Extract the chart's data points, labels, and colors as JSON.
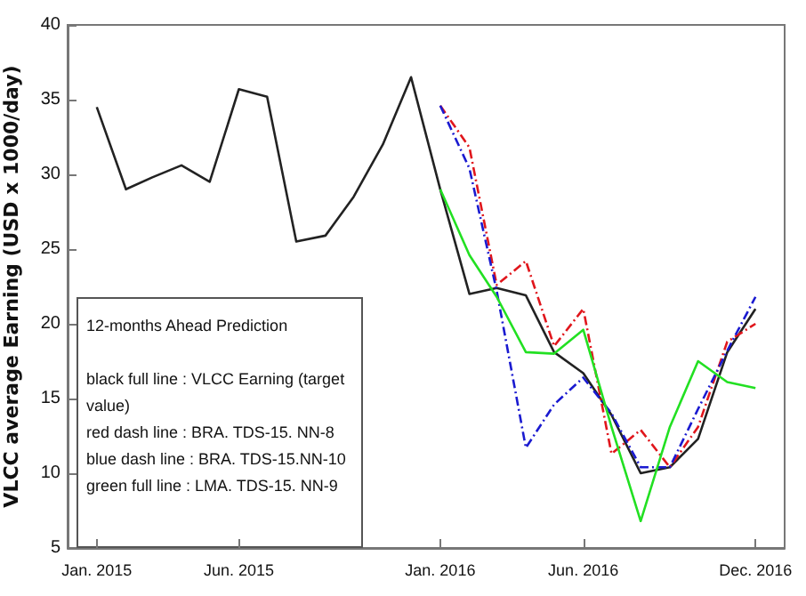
{
  "chart_data": {
    "type": "line",
    "ylabel": "VLCC average Earning (USD x 1000/day)",
    "xlim": [
      "2014-12",
      "2017-01"
    ],
    "ylim": [
      5,
      40
    ],
    "yticks": [
      5,
      10,
      15,
      20,
      25,
      30,
      35,
      40
    ],
    "xticks": [
      {
        "value": "2015-01",
        "label": "Jan. 2015"
      },
      {
        "value": "2015-06",
        "label": "Jun. 2015"
      },
      {
        "value": "2016-01",
        "label": "Jan. 2016"
      },
      {
        "value": "2016-06",
        "label": "Jun. 2016"
      },
      {
        "value": "2016-12",
        "label": "Dec. 2016"
      }
    ],
    "grid": false,
    "marker": "none",
    "series": [
      {
        "color": "#222222",
        "line_style": "solid",
        "x": [
          "2015-01",
          "2015-02",
          "2015-03",
          "2015-04",
          "2015-05",
          "2015-06",
          "2015-07",
          "2015-08",
          "2015-09",
          "2015-10",
          "2015-11",
          "2015-12",
          "2016-01",
          "2016-02",
          "2016-03",
          "2016-04",
          "2016-05",
          "2016-06",
          "2016-07",
          "2016-08",
          "2016-09",
          "2016-10",
          "2016-11",
          "2016-12"
        ],
        "values": [
          34.5,
          29.0,
          29.8,
          30.6,
          29.5,
          35.7,
          35.2,
          25.5,
          25.9,
          28.5,
          32.0,
          36.5,
          29.0,
          22.0,
          22.4,
          21.9,
          18.1,
          16.7,
          13.9,
          10.0,
          10.4,
          12.3,
          18.1,
          21.0
        ]
      },
      {
        "color": "#e0161c",
        "line_style": "dashed",
        "x": [
          "2016-01",
          "2016-02",
          "2016-03",
          "2016-04",
          "2016-05",
          "2016-06",
          "2016-07",
          "2016-08",
          "2016-09",
          "2016-10",
          "2016-11",
          "2016-12"
        ],
        "values": [
          34.6,
          31.8,
          22.6,
          24.2,
          18.5,
          21.0,
          11.3,
          12.9,
          10.4,
          13.1,
          18.8,
          20.0
        ]
      },
      {
        "color": "#1a1ad0",
        "line_style": "dashed",
        "x": [
          "2016-01",
          "2016-02",
          "2016-03",
          "2016-04",
          "2016-05",
          "2016-06",
          "2016-07",
          "2016-08",
          "2016-09",
          "2016-10",
          "2016-11",
          "2016-12"
        ],
        "values": [
          34.6,
          30.4,
          22.2,
          11.7,
          14.6,
          16.4,
          14.0,
          10.4,
          10.4,
          14.3,
          18.2,
          21.8
        ]
      },
      {
        "color": "#22e022",
        "line_style": "solid",
        "x": [
          "2016-01",
          "2016-02",
          "2016-03",
          "2016-04",
          "2016-05",
          "2016-06",
          "2016-07",
          "2016-08",
          "2016-09",
          "2016-10",
          "2016-11",
          "2016-12"
        ],
        "values": [
          29.0,
          24.6,
          21.8,
          18.1,
          18.0,
          19.6,
          13.1,
          6.8,
          13.1,
          17.5,
          16.1,
          15.7
        ]
      }
    ],
    "annotations": [
      "12-months Ahead Prediction",
      "black full line : VLCC Earning (target value)",
      "red dash line : BRA. TDS-15. NN-8",
      "blue dash line : BRA. TDS-15.NN-10",
      "green full line : LMA. TDS-15. NN-9"
    ]
  }
}
